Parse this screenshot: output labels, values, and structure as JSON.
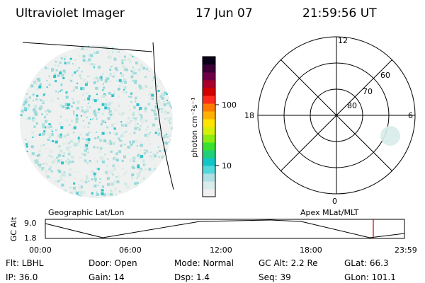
{
  "header": {
    "instrument": "Ultraviolet Imager",
    "date": "17 Jun 07",
    "time": "21:59:56 UT"
  },
  "colorbar": {
    "label": "photon cm⁻²s⁻¹",
    "ticks": [
      {
        "value": 10,
        "label": "10"
      },
      {
        "value": 100,
        "label": "100"
      }
    ],
    "colors": [
      "#f0f0f0",
      "#d8ecec",
      "#aee0e4",
      "#54d8dc",
      "#12c6c8",
      "#22d07a",
      "#3ae030",
      "#8cec10",
      "#d4f00a",
      "#ffe400",
      "#ffb000",
      "#ff7a00",
      "#ff2a1e",
      "#d40000",
      "#a8002a",
      "#6e0046",
      "#3c0036",
      "#0a0018"
    ]
  },
  "polar_plot": {
    "mlt_labels": {
      "top": "12",
      "right": "6",
      "bottom": "0",
      "left": "18"
    },
    "mlat_labels": [
      "60",
      "70",
      "80"
    ]
  },
  "panels": {
    "left_label": "Geographic Lat/Lon",
    "right_label": "Apex MLat/MLT"
  },
  "timeline": {
    "axis_label": "GC Alt",
    "y_top": "9.0",
    "y_bottom": "1.8",
    "x_ticks": [
      "00:00",
      "06:00",
      "12:00",
      "18:00",
      "23:59"
    ],
    "marker_color": "#cc0000"
  },
  "status": {
    "row1": [
      {
        "key": "filter",
        "text": "Flt: LBHL"
      },
      {
        "key": "door",
        "text": "Door: Open"
      },
      {
        "key": "mode",
        "text": "Mode: Normal"
      },
      {
        "key": "gc_alt",
        "text": "GC Alt: 2.2 Re"
      },
      {
        "key": "glat",
        "text": "GLat:  66.3"
      }
    ],
    "row2": [
      {
        "key": "ip",
        "text": "IP: 36.0"
      },
      {
        "key": "gain",
        "text": "Gain: 14"
      },
      {
        "key": "dsp",
        "text": "Dsp:    1.4"
      },
      {
        "key": "seq",
        "text": "Seq: 39"
      },
      {
        "key": "glon",
        "text": "GLon: 101.1"
      }
    ]
  }
}
